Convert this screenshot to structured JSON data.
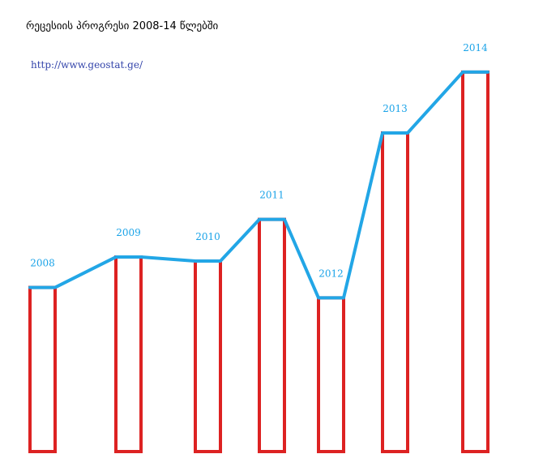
{
  "chart_data": {
    "type": "bar",
    "title": "რეცესიის პროგრესი 2008-14 წლებში",
    "subtitle": "http://www.geostat.ge/",
    "categories": [
      "2008",
      "2009",
      "2010",
      "2011",
      "2012",
      "2013",
      "2014"
    ],
    "values": [
      205,
      243,
      238,
      290,
      192,
      398,
      474
    ],
    "ylim": [
      0,
      480
    ],
    "colors": {
      "bar_outline": "#dd2222",
      "trend_line": "#22a6e6",
      "label": "#1aa3e8"
    },
    "grid": false,
    "legend": "none"
  }
}
